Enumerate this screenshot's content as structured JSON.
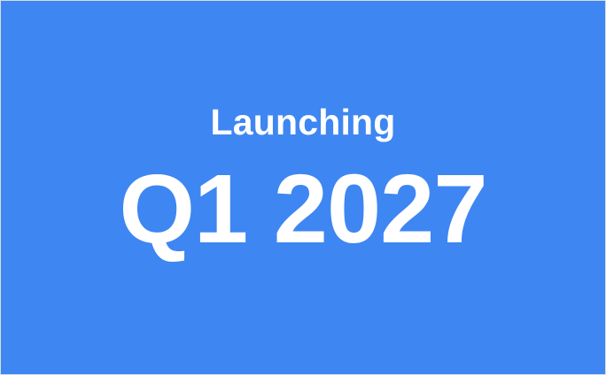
{
  "card": {
    "background_color": "#3e86f2",
    "text_color": "#ffffff",
    "eyebrow": "Launching",
    "headline": "Q1 2027"
  }
}
